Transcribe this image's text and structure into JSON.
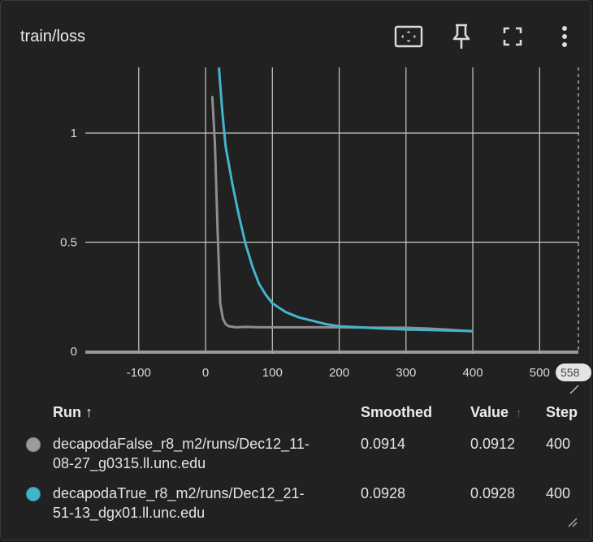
{
  "card": {
    "title": "train/loss"
  },
  "toolbar": {
    "icons": [
      "fit-to-data-icon",
      "pin-icon",
      "fullscreen-icon",
      "more-vert-icon"
    ]
  },
  "chart_data": {
    "type": "line",
    "xlim": [
      -180,
      558
    ],
    "ylim": [
      0,
      1.3
    ],
    "x_ticks": [
      "-100",
      "0",
      "100",
      "200",
      "300",
      "400",
      "500"
    ],
    "x_tick_values": [
      -100,
      0,
      100,
      200,
      300,
      400,
      500
    ],
    "y_ticks": [
      "0",
      "0.5",
      "1"
    ],
    "y_tick_values": [
      0,
      0.5,
      1
    ],
    "cursor_label": "558",
    "grid": true,
    "series": [
      {
        "name": "decapodaFalse_r8_m2/runs/Dec12_11-08-27_g0315.ll.unc.edu",
        "color": "#8e8e8e",
        "x": [
          10,
          14,
          18,
          22,
          26,
          30,
          35,
          45,
          60,
          80,
          100,
          140,
          200,
          260,
          300,
          330,
          360,
          400
        ],
        "y": [
          1.17,
          0.95,
          0.55,
          0.22,
          0.15,
          0.125,
          0.115,
          0.11,
          0.112,
          0.11,
          0.11,
          0.11,
          0.11,
          0.108,
          0.108,
          0.105,
          0.1,
          0.0914
        ]
      },
      {
        "name": "decapodaTrue_r8_m2/runs/Dec12_21-51-13_dgx01.ll.unc.edu",
        "color": "#44b4cc",
        "x": [
          20,
          25,
          30,
          40,
          50,
          60,
          70,
          80,
          90,
          100,
          110,
          120,
          140,
          160,
          180,
          200,
          230,
          260,
          300,
          340,
          400
        ],
        "y": [
          1.3,
          1.1,
          0.94,
          0.77,
          0.62,
          0.49,
          0.39,
          0.31,
          0.26,
          0.22,
          0.2,
          0.18,
          0.155,
          0.14,
          0.125,
          0.115,
          0.11,
          0.105,
          0.1,
          0.097,
          0.0928
        ]
      }
    ]
  },
  "table": {
    "headers": {
      "run": "Run ↑",
      "smoothed": "Smoothed",
      "value": "Value",
      "value_sort": "↑",
      "step": "Step"
    },
    "rows": [
      {
        "color": "#9a9ba1",
        "run_line1": "decapodaFalse_r8_m2/runs/Dec12_11-",
        "run_line2": "08-27_g0315.ll.unc.edu",
        "smoothed": "0.0914",
        "value": "0.0912",
        "step": "400"
      },
      {
        "color": "#44b4cc",
        "run_line1": "decapodaTrue_r8_m2/runs/Dec12_21-",
        "run_line2": "51-13_dgx01.ll.unc.edu",
        "smoothed": "0.0928",
        "value": "0.0928",
        "step": "400"
      }
    ]
  }
}
